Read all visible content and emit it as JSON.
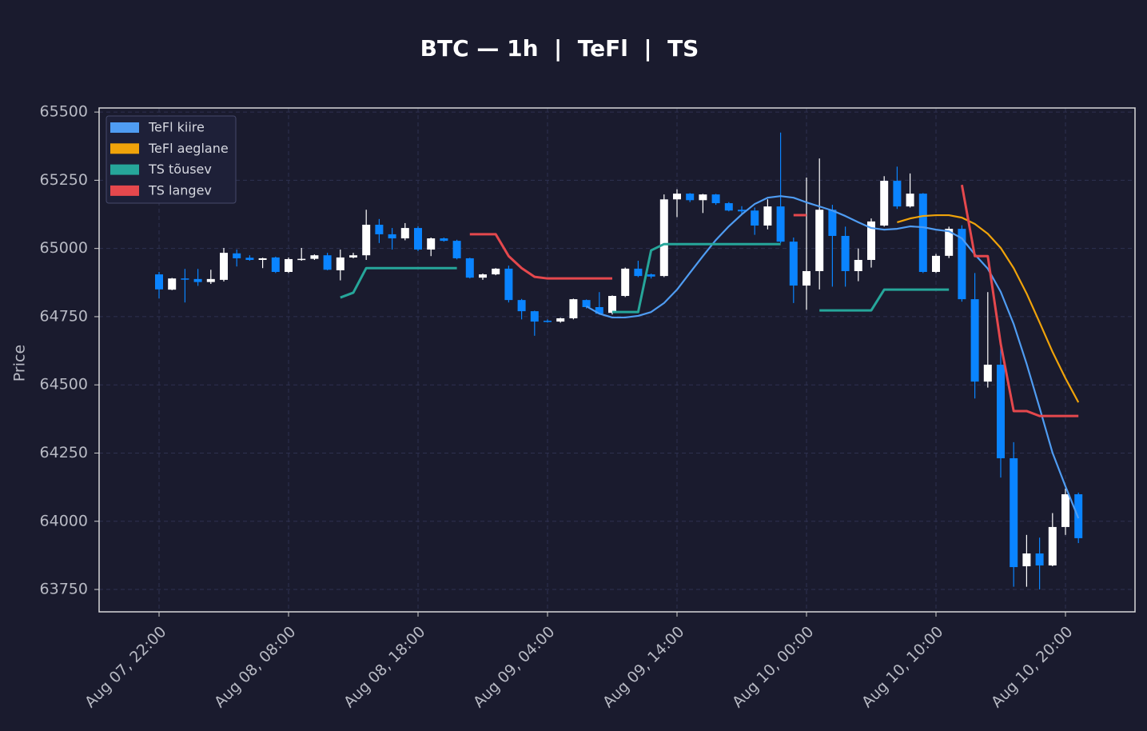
{
  "chart_data": {
    "type": "candlestick",
    "title": "BTC — 1h  |  TeFl  |  TS",
    "ylabel": "Price",
    "x": [
      "Aug 07, 22:00",
      "Aug 07, 23:00",
      "Aug 08, 00:00",
      "Aug 08, 01:00",
      "Aug 08, 02:00",
      "Aug 08, 03:00",
      "Aug 08, 04:00",
      "Aug 08, 05:00",
      "Aug 08, 06:00",
      "Aug 08, 07:00",
      "Aug 08, 08:00",
      "Aug 08, 09:00",
      "Aug 08, 10:00",
      "Aug 08, 11:00",
      "Aug 08, 12:00",
      "Aug 08, 13:00",
      "Aug 08, 14:00",
      "Aug 08, 15:00",
      "Aug 08, 16:00",
      "Aug 08, 17:00",
      "Aug 08, 18:00",
      "Aug 08, 19:00",
      "Aug 08, 20:00",
      "Aug 08, 21:00",
      "Aug 08, 22:00",
      "Aug 08, 23:00",
      "Aug 09, 00:00",
      "Aug 09, 01:00",
      "Aug 09, 02:00",
      "Aug 09, 03:00",
      "Aug 09, 04:00",
      "Aug 09, 05:00",
      "Aug 09, 06:00",
      "Aug 09, 07:00",
      "Aug 09, 08:00",
      "Aug 09, 09:00",
      "Aug 09, 10:00",
      "Aug 09, 11:00",
      "Aug 09, 12:00",
      "Aug 09, 13:00",
      "Aug 09, 14:00",
      "Aug 09, 15:00",
      "Aug 09, 16:00",
      "Aug 09, 17:00",
      "Aug 09, 18:00",
      "Aug 09, 19:00",
      "Aug 09, 20:00",
      "Aug 09, 21:00",
      "Aug 09, 22:00",
      "Aug 09, 23:00",
      "Aug 10, 00:00",
      "Aug 10, 01:00",
      "Aug 10, 02:00",
      "Aug 10, 03:00",
      "Aug 10, 04:00",
      "Aug 10, 05:00",
      "Aug 10, 06:00",
      "Aug 10, 07:00",
      "Aug 10, 08:00",
      "Aug 10, 09:00",
      "Aug 10, 10:00",
      "Aug 10, 11:00",
      "Aug 10, 12:00",
      "Aug 10, 13:00",
      "Aug 10, 14:00",
      "Aug 10, 15:00",
      "Aug 10, 16:00",
      "Aug 10, 17:00",
      "Aug 10, 18:00",
      "Aug 10, 19:00",
      "Aug 10, 20:00",
      "Aug 10, 21:00"
    ],
    "xticks": [
      "Aug 07, 22:00",
      "Aug 08, 08:00",
      "Aug 08, 18:00",
      "Aug 09, 04:00",
      "Aug 09, 14:00",
      "Aug 10, 00:00",
      "Aug 10, 10:00",
      "Aug 10, 20:00"
    ],
    "open": [
      64905,
      64849,
      64890,
      64888,
      64877,
      64885,
      64982,
      64966,
      64958,
      64967,
      64914,
      64960,
      64962,
      64975,
      64920,
      64967,
      64975,
      65087,
      65052,
      65037,
      65075,
      64996,
      65037,
      65028,
      64964,
      64893,
      64905,
      64926,
      64811,
      64770,
      64735,
      64732,
      64744,
      64811,
      64785,
      64764,
      64826,
      64926,
      64905,
      64899,
      65180,
      65201,
      65177,
      65198,
      65166,
      65142,
      65139,
      65084,
      65154,
      65025,
      64864,
      64917,
      65142,
      65046,
      64917,
      64958,
      65084,
      65248,
      65154,
      65201,
      64914,
      64973,
      65072,
      64814,
      64512,
      64574,
      64231,
      63835,
      63882,
      63838,
      63979,
      64099
    ],
    "high": [
      64914,
      64892,
      64925,
      64925,
      64922,
      65002,
      64996,
      64975,
      64966,
      64970,
      64967,
      65002,
      64978,
      64984,
      64996,
      64984,
      65142,
      65108,
      65075,
      65093,
      65081,
      65040,
      65040,
      65032,
      64966,
      64908,
      64928,
      64937,
      64815,
      64772,
      64740,
      64746,
      64816,
      64813,
      64840,
      64828,
      64930,
      64955,
      64908,
      65198,
      65217,
      65203,
      65200,
      65200,
      65170,
      65155,
      65150,
      65180,
      65425,
      65040,
      65260,
      65330,
      65160,
      65080,
      65000,
      65110,
      65265,
      65300,
      65275,
      65203,
      64980,
      65080,
      65085,
      64910,
      64840,
      64660,
      64290,
      63950,
      63940,
      64030,
      64120,
      64105
    ],
    "low": [
      64817,
      64847,
      64802,
      64863,
      64870,
      64879,
      64934,
      64955,
      64928,
      64910,
      64910,
      64955,
      64958,
      64920,
      64883,
      64964,
      64958,
      65020,
      64996,
      65030,
      64990,
      64972,
      65025,
      64960,
      64890,
      64885,
      64902,
      64802,
      64740,
      64680,
      64728,
      64728,
      64740,
      64780,
      64758,
      64758,
      64822,
      64895,
      64890,
      64895,
      65115,
      65170,
      65130,
      65160,
      65136,
      65125,
      65050,
      65070,
      65020,
      64800,
      64775,
      64850,
      64860,
      64860,
      64880,
      64930,
      65080,
      65145,
      65150,
      64910,
      64910,
      64965,
      64805,
      64450,
      64490,
      64160,
      63760,
      63760,
      63750,
      63835,
      63950,
      63920
    ],
    "close": [
      64850,
      64890,
      64886,
      64877,
      64888,
      64984,
      64964,
      64958,
      64964,
      64914,
      64961,
      64962,
      64975,
      64922,
      64967,
      64975,
      65087,
      65052,
      65037,
      65075,
      64996,
      65037,
      65028,
      64964,
      64893,
      64905,
      64926,
      64811,
      64770,
      64732,
      64732,
      64744,
      64814,
      64785,
      64761,
      64826,
      64926,
      64899,
      64897,
      65180,
      65201,
      65177,
      65198,
      65166,
      65139,
      65136,
      65084,
      65154,
      65025,
      64864,
      64917,
      65142,
      65046,
      64917,
      64958,
      65099,
      65248,
      65154,
      65201,
      64914,
      64973,
      65072,
      64814,
      64512,
      64574,
      64231,
      63832,
      63882,
      63838,
      63979,
      64099,
      63938
    ],
    "up_color": "#ffffff",
    "down_color": "#0a84ff",
    "series": [
      {
        "name": "TeFl kiire",
        "color": "#4f9cf2",
        "values": [
          null,
          null,
          null,
          null,
          null,
          null,
          null,
          null,
          null,
          null,
          null,
          null,
          null,
          null,
          null,
          null,
          null,
          null,
          null,
          null,
          null,
          null,
          null,
          null,
          null,
          null,
          null,
          null,
          null,
          null,
          null,
          null,
          null,
          64788,
          64761,
          64747,
          64747,
          64753,
          64767,
          64800,
          64849,
          64911,
          64972,
          65031,
          65081,
          65125,
          65163,
          65186,
          65192,
          65186,
          65169,
          65154,
          65139,
          65119,
          65096,
          65075,
          65069,
          65072,
          65081,
          65078,
          65069,
          65063,
          65037,
          64978,
          64926,
          64841,
          64723,
          64577,
          64416,
          64251,
          64128,
          64011
        ]
      },
      {
        "name": "TeFl aeglane",
        "color": "#f0a30a",
        "values": [
          null,
          null,
          null,
          null,
          null,
          null,
          null,
          null,
          null,
          null,
          null,
          null,
          null,
          null,
          null,
          null,
          null,
          null,
          null,
          null,
          null,
          null,
          null,
          null,
          null,
          null,
          null,
          null,
          null,
          null,
          null,
          null,
          null,
          null,
          null,
          null,
          null,
          null,
          null,
          null,
          null,
          null,
          null,
          null,
          null,
          null,
          null,
          null,
          null,
          null,
          null,
          null,
          null,
          null,
          null,
          null,
          null,
          65096,
          65110,
          65119,
          65122,
          65122,
          65113,
          65090,
          65054,
          65002,
          64928,
          64835,
          64729,
          64621,
          64524,
          64436
        ]
      },
      {
        "name": "TS tõusev",
        "color": "#26a69a",
        "values": [
          null,
          null,
          null,
          null,
          null,
          null,
          null,
          null,
          null,
          null,
          null,
          null,
          null,
          null,
          64820,
          64838,
          64928,
          64928,
          64928,
          64928,
          64928,
          64928,
          64928,
          64928,
          null,
          null,
          null,
          null,
          null,
          null,
          null,
          null,
          null,
          null,
          null,
          64767,
          64767,
          64767,
          64993,
          65016,
          65016,
          65016,
          65016,
          65016,
          65016,
          65016,
          65016,
          65016,
          65016,
          null,
          null,
          64773,
          64773,
          64773,
          64773,
          64773,
          64849,
          64849,
          64849,
          64849,
          64849,
          64849,
          null,
          null,
          null,
          null,
          null,
          null,
          null,
          null,
          null,
          null
        ]
      },
      {
        "name": "TS langev",
        "color": "#e5484d",
        "values": [
          null,
          null,
          null,
          null,
          null,
          null,
          null,
          null,
          null,
          null,
          null,
          null,
          null,
          null,
          null,
          null,
          null,
          null,
          null,
          null,
          null,
          null,
          null,
          null,
          65052,
          65052,
          65052,
          64972,
          64928,
          64896,
          64890,
          64890,
          64890,
          64890,
          64890,
          64890,
          null,
          null,
          null,
          null,
          null,
          null,
          null,
          null,
          null,
          null,
          null,
          null,
          null,
          65122,
          65122,
          null,
          null,
          null,
          null,
          null,
          null,
          null,
          null,
          null,
          null,
          null,
          65233,
          64972,
          64972,
          64650,
          64404,
          64404,
          64386,
          64386,
          64386,
          64386
        ]
      }
    ],
    "ylim": [
      63668,
      65515
    ],
    "yticks": [
      63750,
      64000,
      64250,
      64500,
      64750,
      65000,
      65250,
      65500
    ],
    "grid": true,
    "legend": "upper left"
  }
}
